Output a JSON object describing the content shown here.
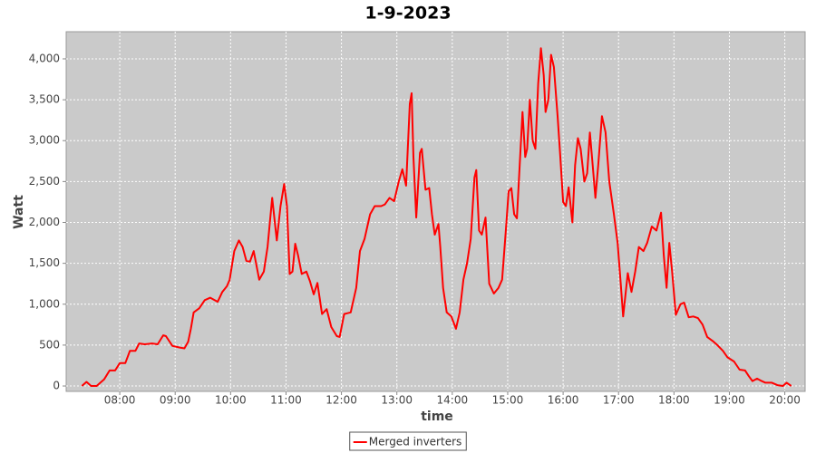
{
  "chart_data": {
    "type": "line",
    "title": "1-9-2023",
    "x_label": "time",
    "y_label": "Watt",
    "x": [
      "07:19",
      "07:24",
      "07:29",
      "07:35",
      "07:43",
      "07:49",
      "07:55",
      "08:00",
      "08:06",
      "08:11",
      "08:17",
      "08:21",
      "08:27",
      "08:35",
      "08:41",
      "08:47",
      "08:50",
      "08:57",
      "09:05",
      "09:10",
      "09:14",
      "09:17",
      "09:20",
      "09:26",
      "09:32",
      "09:38",
      "09:46",
      "09:51",
      "09:56",
      "09:59",
      "10:04",
      "10:09",
      "10:13",
      "10:17",
      "10:21",
      "10:25",
      "10:31",
      "10:36",
      "10:40",
      "10:45",
      "10:50",
      "10:54",
      "10:58",
      "11:01",
      "11:04",
      "11:07",
      "11:10",
      "11:13",
      "11:17",
      "11:22",
      "11:26",
      "11:30",
      "11:34",
      "11:39",
      "11:44",
      "11:49",
      "11:55",
      "11:58",
      "12:03",
      "12:10",
      "12:16",
      "12:20",
      "12:25",
      "12:31",
      "12:36",
      "12:43",
      "12:47",
      "12:52",
      "12:57",
      "13:02",
      "13:06",
      "13:10",
      "13:14",
      "13:16",
      "13:18",
      "13:21",
      "13:25",
      "13:27",
      "13:31",
      "13:35",
      "13:38",
      "13:41",
      "13:45",
      "13:47",
      "13:50",
      "13:54",
      "13:59",
      "14:04",
      "14:08",
      "14:12",
      "14:16",
      "14:20",
      "14:24",
      "14:26",
      "14:29",
      "14:32",
      "14:36",
      "14:40",
      "14:45",
      "14:50",
      "14:54",
      "14:58",
      "15:01",
      "15:04",
      "15:07",
      "15:10",
      "15:13",
      "15:16",
      "15:19",
      "15:21",
      "15:24",
      "15:27",
      "15:30",
      "15:33",
      "15:36",
      "15:39",
      "15:41",
      "15:44",
      "15:47",
      "15:50",
      "15:54",
      "15:57",
      "16:00",
      "16:03",
      "16:06",
      "16:10",
      "16:13",
      "16:16",
      "16:19",
      "16:23",
      "16:26",
      "16:29",
      "16:32",
      "16:35",
      "16:38",
      "16:42",
      "16:46",
      "16:50",
      "16:55",
      "16:59",
      "17:02",
      "17:05",
      "17:10",
      "17:14",
      "17:18",
      "17:22",
      "17:27",
      "17:31",
      "17:36",
      "17:41",
      "17:46",
      "17:49",
      "17:52",
      "17:55",
      "17:58",
      "18:02",
      "18:07",
      "18:11",
      "18:16",
      "18:21",
      "18:26",
      "18:31",
      "18:36",
      "18:42",
      "18:47",
      "18:53",
      "18:58",
      "19:05",
      "19:11",
      "19:17",
      "19:21",
      "19:25",
      "19:30",
      "19:35",
      "19:39",
      "19:46",
      "19:52",
      "19:58",
      "20:02",
      "20:07"
    ],
    "series": [
      {
        "name": "Merged inverters",
        "color": "#ff0000",
        "values": [
          0,
          50,
          0,
          0,
          80,
          190,
          190,
          280,
          280,
          430,
          430,
          520,
          510,
          520,
          510,
          620,
          610,
          490,
          470,
          460,
          540,
          700,
          900,
          950,
          1050,
          1080,
          1030,
          1150,
          1220,
          1300,
          1650,
          1780,
          1700,
          1530,
          1520,
          1650,
          1300,
          1400,
          1700,
          2300,
          1780,
          2200,
          2470,
          2200,
          1370,
          1400,
          1740,
          1600,
          1370,
          1400,
          1280,
          1120,
          1260,
          880,
          940,
          720,
          610,
          600,
          880,
          900,
          1200,
          1650,
          1800,
          2100,
          2200,
          2200,
          2220,
          2300,
          2260,
          2500,
          2650,
          2450,
          3450,
          3580,
          2800,
          2060,
          2850,
          2900,
          2400,
          2420,
          2100,
          1850,
          1980,
          1700,
          1200,
          900,
          850,
          700,
          900,
          1300,
          1500,
          1800,
          2550,
          2640,
          1900,
          1850,
          2060,
          1250,
          1130,
          1200,
          1300,
          1900,
          2380,
          2420,
          2100,
          2050,
          2700,
          3350,
          2800,
          2900,
          3500,
          3000,
          2900,
          3700,
          4130,
          3800,
          3350,
          3500,
          4050,
          3900,
          3300,
          2800,
          2250,
          2200,
          2430,
          2000,
          2700,
          3030,
          2900,
          2500,
          2600,
          3100,
          2700,
          2300,
          2700,
          3300,
          3100,
          2500,
          2100,
          1750,
          1300,
          850,
          1380,
          1150,
          1400,
          1700,
          1650,
          1750,
          1950,
          1900,
          2120,
          1600,
          1200,
          1750,
          1400,
          870,
          1000,
          1020,
          840,
          850,
          830,
          750,
          600,
          550,
          500,
          430,
          350,
          300,
          200,
          190,
          120,
          60,
          90,
          60,
          40,
          40,
          10,
          0,
          40,
          0
        ]
      }
    ],
    "xlim": [
      "07:02",
      "20:22"
    ],
    "xticks": [
      "08:00",
      "09:00",
      "10:00",
      "11:00",
      "12:00",
      "13:00",
      "14:00",
      "15:00",
      "16:00",
      "17:00",
      "18:00",
      "19:00",
      "20:00"
    ],
    "ylim": [
      -66,
      4332
    ],
    "yticks": [
      0,
      500,
      {
        "value": 1000,
        "label": "1,000"
      },
      {
        "value": 1500,
        "label": "1,500"
      },
      {
        "value": 2000,
        "label": "2,000"
      },
      {
        "value": 2500,
        "label": "2,500"
      },
      {
        "value": 3000,
        "label": "3,000"
      },
      {
        "value": 3500,
        "label": "3,500"
      },
      {
        "value": 4000,
        "label": "4,000"
      }
    ],
    "grid": true,
    "legend": "bottom",
    "plot_background": "#cacaca"
  }
}
